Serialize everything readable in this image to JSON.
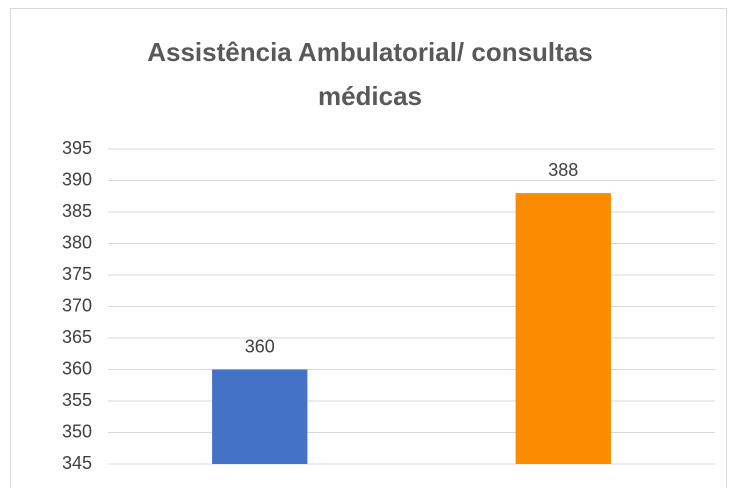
{
  "chart_data": {
    "type": "bar",
    "title": "Assistência Ambulatorial/ consultas médicas",
    "categories": [
      null,
      null
    ],
    "values": [
      360,
      388
    ],
    "colors": [
      "#4472c4",
      "#fb8c00"
    ],
    "ylim": [
      345,
      395
    ],
    "yticks": [
      345,
      350,
      355,
      360,
      365,
      370,
      375,
      380,
      385,
      390,
      395
    ],
    "grid": true
  }
}
